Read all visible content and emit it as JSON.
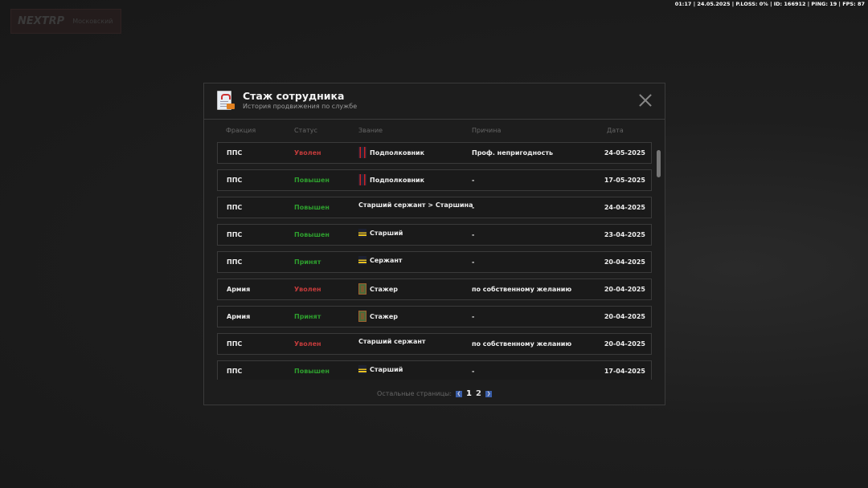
{
  "hud": {
    "status": "01:17 | 24.05.2025 | P.LOSS: 0% | ID: 166912 | PING: 19 | FPS: 87",
    "logo": "NEXTRP",
    "server": "Московский"
  },
  "modal": {
    "title": "Стаж сотрудника",
    "subtitle": "История продвижения по службе",
    "columns": [
      "Фракция",
      "Статус",
      "Звание",
      "Причина",
      "Дата"
    ],
    "rows": [
      {
        "faction": "ППС",
        "status": "Уволен",
        "status_type": "red",
        "rank_icon": "lt-colonel-insignia",
        "rank": "Подполковник",
        "reason": "Проф. непригодность",
        "date": "24-05-2025"
      },
      {
        "faction": "ППС",
        "status": "Повышен",
        "status_type": "green",
        "rank_icon": "lt-colonel-insignia",
        "rank": "Подполковник",
        "reason": "-",
        "date": "17-05-2025"
      },
      {
        "faction": "ППС",
        "status": "Повышен",
        "status_type": "green",
        "rank_icon": "",
        "rank": "Старший сержант > Старшина",
        "reason": "-",
        "date": "24-04-2025"
      },
      {
        "faction": "ППС",
        "status": "Повышен",
        "status_type": "green",
        "rank_icon": "senior-insignia",
        "rank": "Старший",
        "reason": "-",
        "date": "23-04-2025"
      },
      {
        "faction": "ППС",
        "status": "Принят",
        "status_type": "green",
        "rank_icon": "sergeant-insignia",
        "rank": "Сержант",
        "reason": "-",
        "date": "20-04-2025"
      },
      {
        "faction": "Армия",
        "status": "Уволен",
        "status_type": "red",
        "rank_icon": "trainee-insignia",
        "rank": "Стажер",
        "reason": "по собственному желанию",
        "date": "20-04-2025"
      },
      {
        "faction": "Армия",
        "status": "Принят",
        "status_type": "green",
        "rank_icon": "trainee-insignia",
        "rank": "Стажер",
        "reason": "-",
        "date": "20-04-2025"
      },
      {
        "faction": "ППС",
        "status": "Уволен",
        "status_type": "red",
        "rank_icon": "",
        "rank": "Старший сержант",
        "reason": "по собственному желанию",
        "date": "20-04-2025"
      },
      {
        "faction": "ППС",
        "status": "Повышен",
        "status_type": "green",
        "rank_icon": "senior-insignia",
        "rank": "Старший",
        "reason": "-",
        "date": "17-04-2025"
      }
    ],
    "pager": {
      "label": "Остальные страницы:",
      "pages": [
        "1",
        "2"
      ],
      "current": "1"
    },
    "colors": {
      "fired": "#c23b3b",
      "promoted": "#2e9e2e",
      "pager_button": "#3a5ea8"
    }
  }
}
